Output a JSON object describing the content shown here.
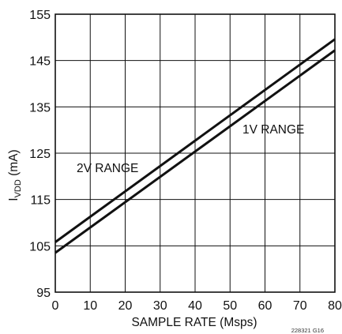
{
  "chart_data": {
    "type": "line",
    "xlabel": "SAMPLE RATE (Msps)",
    "ylabel_main": "I",
    "ylabel_sub": "VDD",
    "ylabel_unit": " (mA)",
    "xlim": [
      0,
      80
    ],
    "ylim": [
      95,
      155
    ],
    "xticks": [
      0,
      10,
      20,
      30,
      40,
      50,
      60,
      70,
      80
    ],
    "yticks": [
      95,
      105,
      115,
      125,
      135,
      145,
      155
    ],
    "grid": true,
    "series": [
      {
        "name": "2V RANGE",
        "x": [
          0,
          80
        ],
        "y": [
          105.8,
          149.6
        ]
      },
      {
        "name": "1V RANGE",
        "x": [
          0,
          80
        ],
        "y": [
          103.5,
          147.2
        ]
      }
    ],
    "figure_id": "228321 G16"
  }
}
